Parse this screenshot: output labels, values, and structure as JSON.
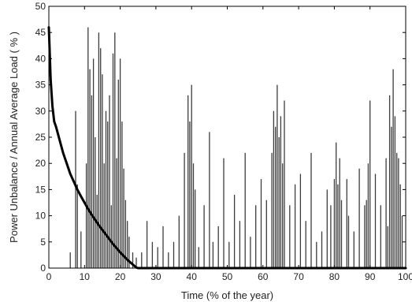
{
  "chart_data": {
    "type": "line",
    "title": "",
    "xlabel": "Time (% of the year)",
    "ylabel": "Power Unbalance / Annual Average Load  ( % )",
    "xlim": [
      0,
      100
    ],
    "ylim": [
      0,
      50
    ],
    "x_ticks": [
      "0",
      "10",
      "20",
      "30",
      "40",
      "50",
      "60",
      "70",
      "80",
      "90",
      "100"
    ],
    "y_ticks": [
      "0",
      "5",
      "10",
      "15",
      "20",
      "25",
      "30",
      "35",
      "40",
      "45",
      "50"
    ],
    "grid": false,
    "legend": "none",
    "series": [
      {
        "style": "bars",
        "color": "#3c3c3c",
        "x": [
          6,
          7.5,
          8,
          9,
          10.5,
          11,
          11.5,
          12,
          12.5,
          13,
          13.5,
          14,
          14.5,
          15,
          15.5,
          16,
          16.5,
          17,
          17.5,
          18,
          18.5,
          19,
          19.5,
          20,
          20.5,
          21,
          21.5,
          22,
          22.5,
          23.5,
          24.5,
          26,
          27.5,
          29,
          30.5,
          32,
          33.5,
          35,
          36.5,
          38,
          39,
          39.5,
          40,
          40.5,
          41,
          42,
          43.5,
          45,
          46,
          47.5,
          49,
          50.5,
          52,
          53.5,
          55,
          56.5,
          58,
          59.5,
          61,
          62.5,
          63,
          63.5,
          64,
          64.5,
          65,
          65.5,
          66,
          67.5,
          69,
          70.5,
          72,
          73.5,
          75,
          76.5,
          78,
          79,
          80,
          80.5,
          81,
          81.5,
          82,
          83.5,
          84,
          85.5,
          87,
          88.5,
          89,
          89.5,
          90,
          91.5,
          93,
          94.5,
          95,
          95.5,
          96,
          96.5,
          97,
          97.5,
          98,
          98.5,
          99
        ],
        "values": [
          3,
          30,
          16,
          7,
          20,
          46,
          38,
          33,
          40,
          25,
          14,
          45,
          42,
          37,
          20,
          30,
          28,
          33,
          12,
          41,
          45,
          21,
          36,
          40,
          28,
          19,
          13,
          9,
          6,
          3,
          2,
          3,
          9,
          5,
          4,
          8,
          3,
          5,
          10,
          22,
          33,
          28,
          35,
          20,
          15,
          4,
          12,
          26,
          5,
          8,
          21,
          5,
          14,
          9,
          22,
          6,
          12,
          17,
          13,
          22,
          30,
          27,
          35,
          25,
          29,
          20,
          32,
          12,
          16,
          18,
          9,
          22,
          5,
          7,
          15,
          12,
          17,
          24,
          16,
          21,
          13,
          17,
          10,
          7,
          19,
          12,
          13,
          20,
          32,
          18,
          12,
          21,
          8,
          33,
          27,
          38,
          29,
          22,
          21,
          16,
          10
        ]
      },
      {
        "style": "line",
        "color": "#000000",
        "x": [
          0,
          0.5,
          1,
          1.5,
          2,
          3,
          4,
          5,
          6,
          7,
          8,
          9,
          10,
          11,
          12,
          13,
          14,
          15,
          16,
          17,
          18,
          19,
          20,
          21,
          22,
          23,
          24,
          24.5,
          25,
          26,
          30,
          40,
          50,
          60,
          70,
          80,
          90,
          100
        ],
        "values": [
          46,
          36,
          31,
          28,
          27,
          24.5,
          22,
          20,
          18,
          16.5,
          15,
          13.7,
          12.5,
          11.3,
          10.2,
          9.2,
          8.2,
          7.3,
          6.4,
          5.5,
          4.6,
          3.8,
          3,
          2.3,
          1.6,
          1,
          0.4,
          0.1,
          0,
          0,
          0,
          0,
          0,
          0,
          0,
          0,
          0,
          0
        ]
      }
    ]
  }
}
